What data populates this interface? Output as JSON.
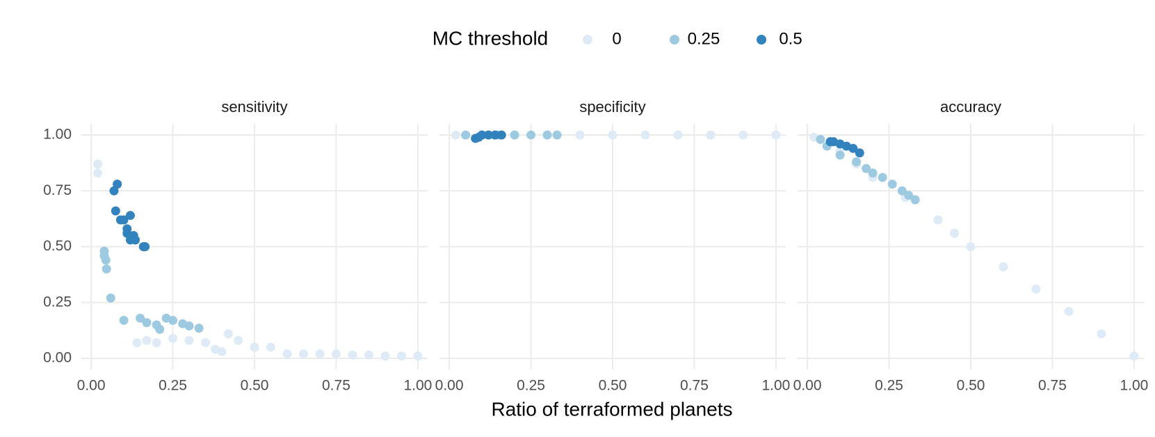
{
  "chart_data": {
    "type": "scatter",
    "legend_title": "MC threshold",
    "x_label": "Ratio of terraformed planets",
    "series": [
      {
        "name": "0",
        "color": "#deebf7"
      },
      {
        "name": "0.25",
        "color": "#9ecae1"
      },
      {
        "name": "0.5",
        "color": "#3182bd"
      }
    ],
    "xlim": [
      -0.03,
      1.03
    ],
    "ylim": [
      -0.05,
      1.05
    ],
    "xticks": [
      {
        "value": 0,
        "label": "0.00"
      },
      0.25,
      {
        "value": 0.5,
        "label": "0.50"
      },
      0.75,
      {
        "value": 1,
        "label": "1.00"
      }
    ],
    "yticks": [
      {
        "value": 0,
        "label": "0.00"
      },
      0.25,
      {
        "value": 0.5,
        "label": "0.50"
      },
      0.75,
      {
        "value": 1,
        "label": "1.00"
      }
    ],
    "grid": true,
    "facets": [
      {
        "title": "sensitivity",
        "series": [
          {
            "x": [
              0.02,
              0.02,
              0.14,
              0.17,
              0.2,
              0.25,
              0.3,
              0.35,
              0.38,
              0.4,
              0.42,
              0.45,
              0.5,
              0.55,
              0.6,
              0.65,
              0.7,
              0.75,
              0.8,
              0.85,
              0.9,
              0.95,
              1.0
            ],
            "values": [
              0.87,
              0.83,
              0.07,
              0.08,
              0.07,
              0.09,
              0.08,
              0.07,
              0.04,
              0.03,
              0.11,
              0.08,
              0.05,
              0.05,
              0.02,
              0.02,
              0.02,
              0.02,
              0.015,
              0.015,
              0.01,
              0.01,
              0.01
            ]
          },
          {
            "x": [
              0.04,
              0.04,
              0.045,
              0.047,
              0.06,
              0.1,
              0.15,
              0.17,
              0.2,
              0.21,
              0.23,
              0.25,
              0.28,
              0.3,
              0.33
            ],
            "values": [
              0.48,
              0.46,
              0.44,
              0.4,
              0.27,
              0.17,
              0.18,
              0.16,
              0.15,
              0.13,
              0.18,
              0.17,
              0.155,
              0.145,
              0.135
            ]
          },
          {
            "x": [
              0.07,
              0.08,
              0.075,
              0.09,
              0.1,
              0.11,
              0.12,
              0.11,
              0.12,
              0.13,
              0.135,
              0.16,
              0.165
            ],
            "values": [
              0.75,
              0.78,
              0.66,
              0.62,
              0.62,
              0.58,
              0.64,
              0.56,
              0.53,
              0.55,
              0.53,
              0.5,
              0.5
            ]
          }
        ]
      },
      {
        "title": "specificity",
        "series": [
          {
            "x": [
              0.02,
              0.1,
              0.2,
              0.3,
              0.4,
              0.5,
              0.6,
              0.7,
              0.8,
              0.9,
              1.0
            ],
            "values": [
              1,
              1,
              1,
              1,
              1,
              1,
              1,
              1,
              1,
              1,
              1
            ]
          },
          {
            "x": [
              0.05,
              0.1,
              0.15,
              0.2,
              0.25,
              0.3,
              0.33
            ],
            "values": [
              1,
              1,
              1,
              1,
              1,
              1,
              1
            ]
          },
          {
            "x": [
              0.08,
              0.09,
              0.1,
              0.12,
              0.14,
              0.16
            ],
            "values": [
              0.985,
              0.99,
              1,
              1,
              1,
              1
            ]
          }
        ]
      },
      {
        "title": "accuracy",
        "series": [
          {
            "x": [
              0.02,
              0.1,
              0.15,
              0.2,
              0.3,
              0.4,
              0.45,
              0.5,
              0.6,
              0.7,
              0.8,
              0.9,
              1.0
            ],
            "values": [
              0.99,
              0.93,
              0.87,
              0.81,
              0.72,
              0.62,
              0.56,
              0.5,
              0.41,
              0.31,
              0.21,
              0.11,
              0.01
            ]
          },
          {
            "x": [
              0.04,
              0.06,
              0.1,
              0.15,
              0.18,
              0.2,
              0.23,
              0.26,
              0.29,
              0.31,
              0.33
            ],
            "values": [
              0.98,
              0.95,
              0.91,
              0.88,
              0.85,
              0.83,
              0.81,
              0.78,
              0.75,
              0.73,
              0.71
            ]
          },
          {
            "x": [
              0.07,
              0.08,
              0.1,
              0.12,
              0.14,
              0.16
            ],
            "values": [
              0.97,
              0.97,
              0.96,
              0.95,
              0.94,
              0.92
            ]
          }
        ]
      }
    ]
  }
}
